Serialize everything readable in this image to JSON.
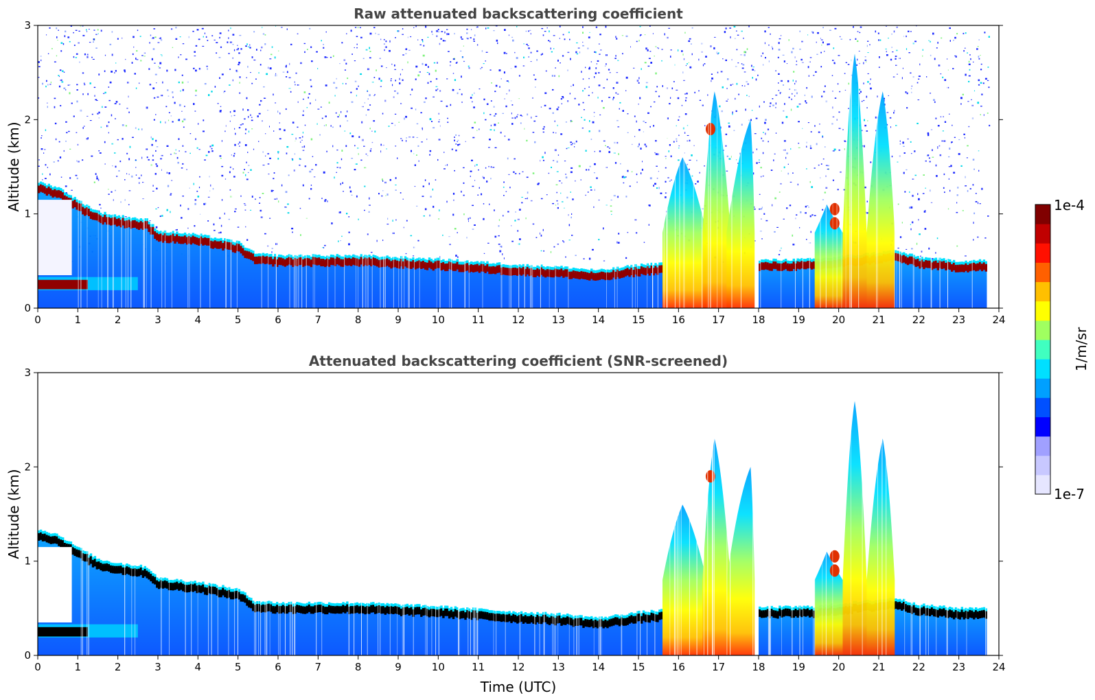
{
  "chart_data": [
    {
      "type": "heatmap",
      "title": "Raw attenuated backscattering coefficient",
      "xlabel": "",
      "ylabel": "Altitude (km)",
      "xlim": [
        0,
        24
      ],
      "ylim": [
        0,
        3
      ],
      "xticks": [
        "0",
        "1",
        "2",
        "3",
        "4",
        "5",
        "6",
        "7",
        "8",
        "9",
        "10",
        "11",
        "12",
        "13",
        "14",
        "15",
        "16",
        "17",
        "18",
        "19",
        "20",
        "21",
        "22",
        "23",
        "24"
      ],
      "yticks": [
        "0",
        "1",
        "2",
        "3"
      ],
      "features": {
        "boundary_layer_top_km": [
          [
            0,
            1.28
          ],
          [
            0.5,
            1.22
          ],
          [
            1,
            1.08
          ],
          [
            1.5,
            0.96
          ],
          [
            2,
            0.92
          ],
          [
            2.7,
            0.88
          ],
          [
            3,
            0.76
          ],
          [
            4,
            0.72
          ],
          [
            5,
            0.64
          ],
          [
            5.4,
            0.52
          ],
          [
            6,
            0.5
          ],
          [
            8,
            0.5
          ],
          [
            10,
            0.46
          ],
          [
            12,
            0.4
          ],
          [
            13,
            0.38
          ],
          [
            14,
            0.34
          ],
          [
            15,
            0.4
          ],
          [
            15.6,
            0.42
          ]
        ],
        "boundary_layer_top_late_km": [
          [
            18,
            0.45
          ],
          [
            19.4,
            0.46
          ],
          [
            21.4,
            0.55
          ],
          [
            22,
            0.48
          ],
          [
            23,
            0.44
          ],
          [
            23.7,
            0.45
          ]
        ],
        "surface_layer_km": [
          [
            0,
            0.25
          ],
          [
            2.5,
            0.25
          ]
        ],
        "plumes": [
          {
            "t_start": 15.6,
            "t_end": 16.7,
            "peak_t": 16.1,
            "top_km": 1.6
          },
          {
            "t_start": 16.6,
            "t_end": 17.3,
            "peak_t": 16.9,
            "top_km": 2.3
          },
          {
            "t_start": 17.2,
            "t_end": 17.9,
            "peak_t": 17.8,
            "top_km": 2.0
          },
          {
            "t_start": 19.4,
            "t_end": 20.1,
            "peak_t": 19.7,
            "top_km": 1.1
          },
          {
            "t_start": 20.1,
            "t_end": 20.7,
            "peak_t": 20.4,
            "top_km": 2.7
          },
          {
            "t_start": 20.7,
            "t_end": 21.4,
            "peak_t": 21.1,
            "top_km": 2.3
          }
        ],
        "hotspots": [
          {
            "t": 16.8,
            "alt_km": 1.9
          },
          {
            "t": 19.9,
            "alt_km": 1.05
          },
          {
            "t": 19.9,
            "alt_km": 0.9
          }
        ],
        "noisy_background": true
      }
    },
    {
      "type": "heatmap",
      "title": "Attenuated backscattering coefficient (SNR-screened)",
      "xlabel": "Time (UTC)",
      "ylabel": "Altitude (km)",
      "xlim": [
        0,
        24
      ],
      "ylim": [
        0,
        3
      ],
      "xticks": [
        "0",
        "1",
        "2",
        "3",
        "4",
        "5",
        "6",
        "7",
        "8",
        "9",
        "10",
        "11",
        "12",
        "13",
        "14",
        "15",
        "16",
        "17",
        "18",
        "19",
        "20",
        "21",
        "22",
        "23",
        "24"
      ],
      "yticks": [
        "0",
        "1",
        "2",
        "3"
      ],
      "features": {
        "same_structure_as_raw": true,
        "saturated_layer_color": "#000000",
        "noisy_background": false
      }
    }
  ],
  "colorbar": {
    "label": "1/m/sr",
    "max_label": "1e-4",
    "min_label": "1e-7",
    "colors": [
      "#e6e6ff",
      "#c8c8ff",
      "#a0a0ff",
      "#0000ff",
      "#0050ff",
      "#00a0ff",
      "#00e0ff",
      "#40ffc0",
      "#a0ff60",
      "#ffff00",
      "#ffc000",
      "#ff6000",
      "#ff1000",
      "#c00000",
      "#800000"
    ]
  }
}
